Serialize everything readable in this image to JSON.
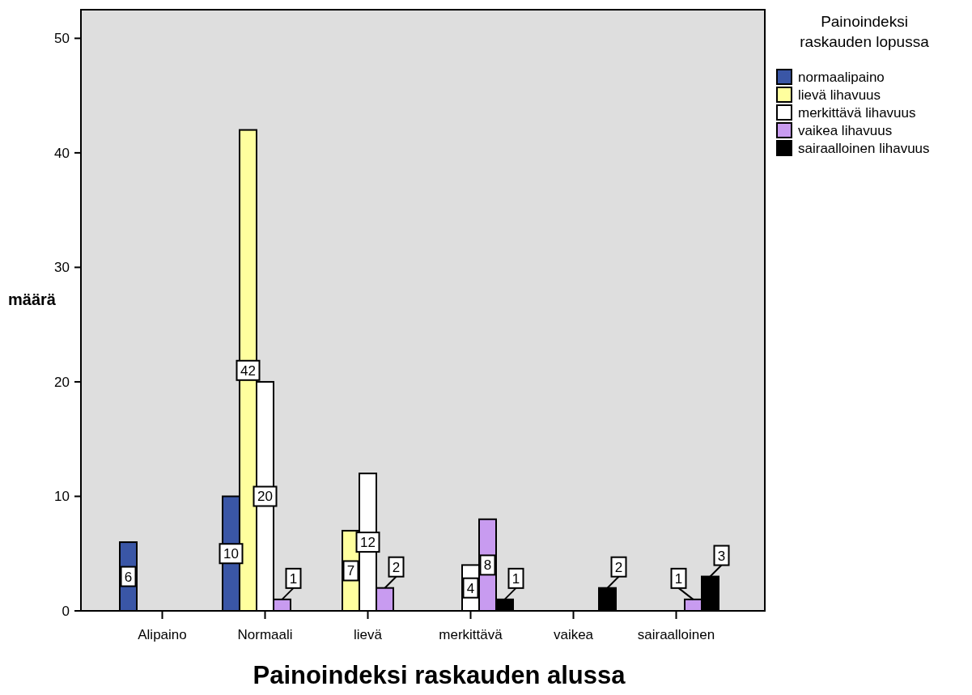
{
  "chart_data": {
    "type": "bar",
    "xlabel": "Painoindeksi raskauden alussa",
    "ylabel": "määrä",
    "legend_title": "Painoindeksi raskauden lopussa",
    "categories": [
      "Alipaino",
      "Normaali",
      "lievä",
      "merkittävä",
      "vaikea",
      "sairaalloinen"
    ],
    "series": [
      {
        "name": "normaalipaino",
        "color": "#3a56a6",
        "values": [
          6,
          10,
          null,
          null,
          null,
          null
        ]
      },
      {
        "name": "lievä lihavuus",
        "color": "#ffff9e",
        "values": [
          null,
          42,
          7,
          null,
          null,
          null
        ]
      },
      {
        "name": "merkittävä lihavuus",
        "color": "#ffffff",
        "values": [
          null,
          20,
          12,
          4,
          null,
          null
        ]
      },
      {
        "name": "vaikea lihavuus",
        "color": "#c89bf0",
        "values": [
          null,
          1,
          2,
          8,
          null,
          1
        ]
      },
      {
        "name": "sairaalloinen lihavuus",
        "color": "#000000",
        "values": [
          null,
          null,
          null,
          1,
          2,
          3
        ]
      }
    ],
    "ylim": [
      0,
      52.5
    ],
    "yticks": [
      0,
      10,
      20,
      30,
      40,
      50
    ],
    "grid": false,
    "legend": "top right",
    "data_labels": true
  }
}
